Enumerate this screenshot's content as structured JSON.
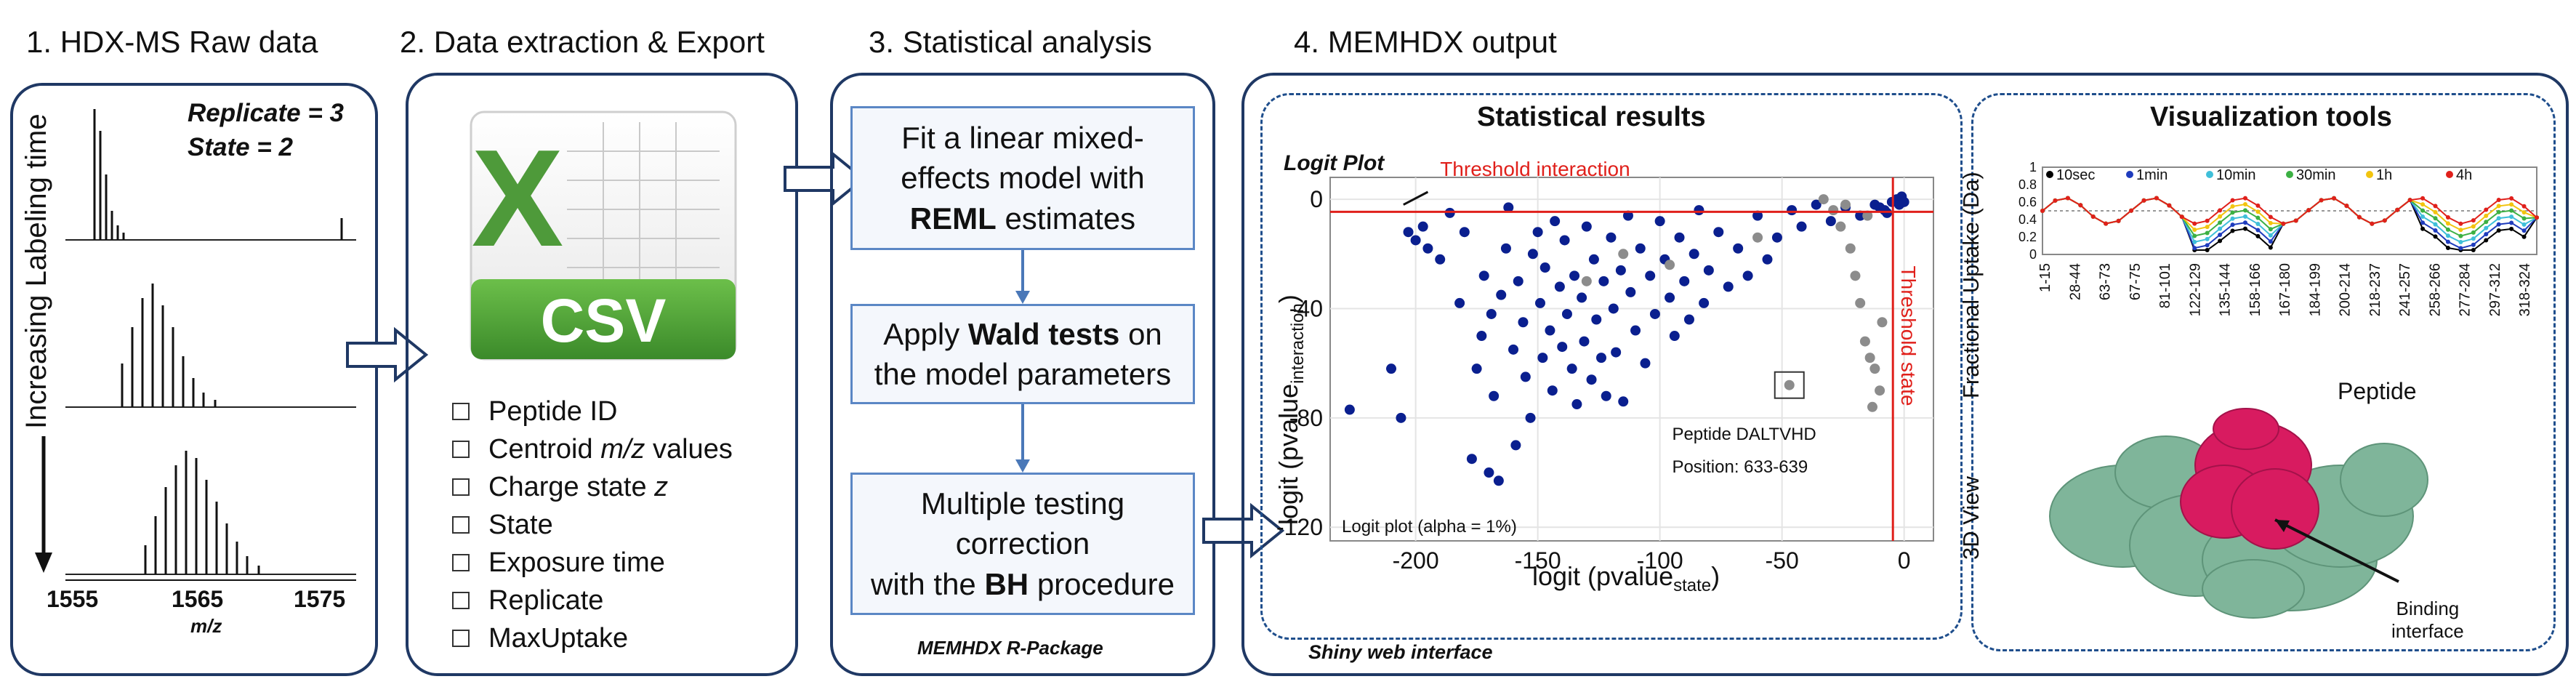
{
  "steps": {
    "s1": "1. HDX-MS Raw data",
    "s2": "2. Data extraction & Export",
    "s3": "3. Statistical analysis",
    "s4": "4. MEMHDX output"
  },
  "panel1": {
    "replicate": "Replicate = 3",
    "state": "State = 2",
    "vertical_label": "Increasing Labeling time",
    "x_ticks": [
      "1555",
      "1565",
      "1575"
    ],
    "x_unit": "m/z"
  },
  "panel2": {
    "csv_label": "CSV",
    "excel_letter": "X",
    "fields": [
      "Peptide ID",
      "Centroid",
      "m/z",
      "values",
      "Charge state",
      "z",
      "State",
      "Exposure time",
      "Replicate",
      "MaxUptake"
    ]
  },
  "panel3": {
    "box1_a": "Fit a linear mixed-",
    "box1_b": "effects model with",
    "box1_bold": "REML",
    "box1_c": "estimates",
    "box2_a": "Apply",
    "box2_bold": "Wald tests",
    "box2_b": "on",
    "box2_c": "the model parameters",
    "box3_a": "Multiple testing",
    "box3_b": "correction",
    "box3_c": "with the",
    "box3_bold": "BH",
    "box3_d": "procedure",
    "footer": "MEMHDX R-Package"
  },
  "panel4": {
    "stat_title": "Statistical results",
    "viz_title": "Visualization tools",
    "footer": "Shiny web interface",
    "logit_plot_label": "Logit Plot",
    "threshold_interaction": "Threshold interaction",
    "threshold_state": "Threshold state",
    "peptide_label": "Peptide DALTVHD",
    "position_label": "Position: 633-639",
    "alpha_label": "Logit plot (alpha = 1%)",
    "ylabel_main": "logit (pvalue",
    "ylabel_sub": "interaction",
    "ylabel_end": ")",
    "xlabel_main": "logit (pvalue",
    "xlabel_sub": "state",
    "xlabel_end": ")",
    "uptake_ylabel": "Fractional Uptake (Da)",
    "uptake_xlabel": "Peptide",
    "view_label": "3D View",
    "binding_label_1": "Binding",
    "binding_label_2": "interface",
    "colors": {
      "accent_dark": "#1f3864",
      "threshold_red": "#e0201b",
      "point_navy": "#0a1f8f",
      "point_gray": "#8c8c8c",
      "protein_green": "#7fb59a",
      "protein_pink": "#d81b60",
      "csv_green": "#4e9a3a"
    }
  },
  "chart_data": [
    {
      "type": "scatter",
      "xlabel": "logit (pvalue_state)",
      "ylabel": "logit (pvalue_interaction)",
      "x_ticks": [
        -200,
        -150,
        -100,
        -50,
        0
      ],
      "y_ticks": [
        0,
        -40,
        -80,
        -120
      ],
      "xlim": [
        -235,
        12
      ],
      "ylim": [
        -125,
        8
      ],
      "threshold_x": -4.6,
      "threshold_y": -4.6,
      "series": [
        {
          "color": "#0a1f8f",
          "points": [
            [
              -227,
              -77
            ],
            [
              -210,
              -62
            ],
            [
              -206,
              -80
            ],
            [
              -203,
              -12
            ],
            [
              -200,
              -15
            ],
            [
              -197,
              -10
            ],
            [
              -195,
              -18
            ],
            [
              -190,
              -22
            ],
            [
              -186,
              -5
            ],
            [
              -182,
              -38
            ],
            [
              -180,
              -12
            ],
            [
              -177,
              -95
            ],
            [
              -175,
              -62
            ],
            [
              -173,
              -50
            ],
            [
              -172,
              -28
            ],
            [
              -170,
              -100
            ],
            [
              -169,
              -42
            ],
            [
              -168,
              -72
            ],
            [
              -166,
              -103
            ],
            [
              -165,
              -35
            ],
            [
              -163,
              -18
            ],
            [
              -162,
              -3
            ],
            [
              -160,
              -55
            ],
            [
              -159,
              -90
            ],
            [
              -158,
              -30
            ],
            [
              -156,
              -45
            ],
            [
              -155,
              -65
            ],
            [
              -153,
              -80
            ],
            [
              -152,
              -20
            ],
            [
              -150,
              -12
            ],
            [
              -149,
              -38
            ],
            [
              -148,
              -58
            ],
            [
              -147,
              -25
            ],
            [
              -145,
              -48
            ],
            [
              -144,
              -70
            ],
            [
              -143,
              -8
            ],
            [
              -141,
              -32
            ],
            [
              -140,
              -54
            ],
            [
              -139,
              -15
            ],
            [
              -138,
              -42
            ],
            [
              -136,
              -62
            ],
            [
              -135,
              -28
            ],
            [
              -134,
              -75
            ],
            [
              -132,
              -36
            ],
            [
              -131,
              -52
            ],
            [
              -130,
              -10
            ],
            [
              -128,
              -66
            ],
            [
              -127,
              -22
            ],
            [
              -126,
              -44
            ],
            [
              -124,
              -58
            ],
            [
              -123,
              -30
            ],
            [
              -122,
              -72
            ],
            [
              -120,
              -14
            ],
            [
              -119,
              -40
            ],
            [
              -118,
              -56
            ],
            [
              -116,
              -26
            ],
            [
              -115,
              -74
            ],
            [
              -113,
              -6
            ],
            [
              -112,
              -34
            ],
            [
              -110,
              -48
            ],
            [
              -108,
              -18
            ],
            [
              -106,
              -60
            ],
            [
              -104,
              -28
            ],
            [
              -102,
              -42
            ],
            [
              -100,
              -8
            ],
            [
              -98,
              -22
            ],
            [
              -96,
              -36
            ],
            [
              -94,
              -50
            ],
            [
              -92,
              -14
            ],
            [
              -90,
              -30
            ],
            [
              -88,
              -44
            ],
            [
              -86,
              -20
            ],
            [
              -84,
              -4
            ],
            [
              -82,
              -38
            ],
            [
              -80,
              -26
            ],
            [
              -76,
              -12
            ],
            [
              -72,
              -32
            ],
            [
              -68,
              -18
            ],
            [
              -64,
              -28
            ],
            [
              -60,
              -6
            ],
            [
              -56,
              -22
            ],
            [
              -52,
              -14
            ],
            [
              -46,
              -4
            ],
            [
              -42,
              -10
            ],
            [
              -36,
              -2
            ],
            [
              -30,
              -8
            ],
            [
              -24,
              -3
            ],
            [
              -18,
              -6
            ],
            [
              -12,
              -2
            ],
            [
              -8,
              -4
            ],
            [
              -5,
              -1
            ],
            [
              -3,
              0
            ],
            [
              -2,
              -2
            ],
            [
              -1,
              1
            ],
            [
              0,
              -1
            ],
            [
              -7,
              -5
            ],
            [
              -10,
              -3
            ]
          ]
        },
        {
          "color": "#8c8c8c",
          "points": [
            [
              -130,
              -30
            ],
            [
              -115,
              -20
            ],
            [
              -96,
              -24
            ],
            [
              -60,
              -14
            ],
            [
              -47,
              -68
            ],
            [
              -33,
              0
            ],
            [
              -29,
              -4
            ],
            [
              -26,
              -10
            ],
            [
              -22,
              -18
            ],
            [
              -20,
              -28
            ],
            [
              -18,
              -38
            ],
            [
              -16,
              -52
            ],
            [
              -14,
              -58
            ],
            [
              -12,
              -62
            ],
            [
              -10,
              -70
            ],
            [
              -13,
              -76
            ],
            [
              -9,
              -45
            ],
            [
              -24,
              -2
            ],
            [
              -15,
              -6
            ]
          ]
        }
      ]
    },
    {
      "type": "line",
      "xlabel": "Peptide",
      "ylabel": "Fractional Uptake (Da)",
      "ylim": [
        0,
        1
      ],
      "y_ticks": [
        0,
        0.2,
        0.4,
        0.6,
        0.8,
        1
      ],
      "x_tick_labels": [
        "1-15",
        "28-44",
        "63-73",
        "67-75",
        "81-101",
        "122-129",
        "135-144",
        "158-166",
        "167-180",
        "184-199",
        "200-214",
        "218-237",
        "241-257",
        "258-266",
        "277-284",
        "297-312",
        "318-324"
      ],
      "legend": [
        "10sec",
        "1min",
        "10min",
        "30min",
        "1h",
        "4h"
      ],
      "legend_colors": [
        "#000000",
        "#1f3cbd",
        "#3fbfd9",
        "#3cb043",
        "#f2c40f",
        "#e0201b"
      ]
    }
  ]
}
